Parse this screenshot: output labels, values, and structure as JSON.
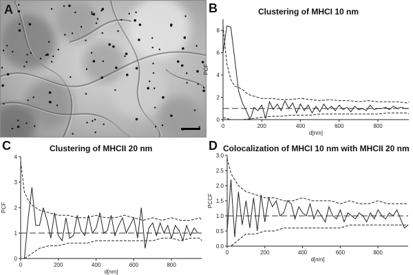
{
  "figure": {
    "panels": [
      {
        "id": "A",
        "label": "A"
      },
      {
        "id": "B",
        "label": "B",
        "title": "Clustering of MHCI 10 nm"
      },
      {
        "id": "C",
        "label": "C",
        "title": "Clustering of MHCII 20 nm"
      },
      {
        "id": "D",
        "label": "D",
        "title": "Colocalization of MHCI 10 nm with MHCII 20 nm"
      }
    ]
  },
  "chart_data": [
    {
      "panel": "B",
      "type": "line",
      "title": "Clustering of MHCI 10 nm",
      "xlabel": "d[nm]",
      "ylabel": "PCF",
      "xlim": [
        0,
        960
      ],
      "ylim": [
        0,
        9
      ],
      "xticks": [
        0,
        200,
        400,
        600,
        800
      ],
      "yticks": [
        0,
        2,
        4,
        6,
        8
      ],
      "reference_line": 1,
      "series": [
        {
          "style": "solid",
          "x": [
            0,
            20,
            40,
            60,
            80,
            100,
            120,
            140,
            160,
            180,
            200,
            220,
            240,
            260,
            280,
            300,
            320,
            340,
            360,
            380,
            400,
            420,
            440,
            460,
            480,
            500,
            520,
            540,
            560,
            580,
            600,
            620,
            640,
            660,
            680,
            700,
            720,
            740,
            760,
            780,
            800,
            820,
            840,
            860,
            880,
            900,
            920,
            940,
            960
          ],
          "y": [
            6.0,
            8.4,
            8.3,
            5.5,
            2.6,
            1.5,
            0.8,
            0.0,
            1.1,
            0.8,
            1.3,
            0.1,
            1.6,
            0.9,
            1.4,
            0.8,
            1.7,
            1.0,
            1.5,
            0.6,
            1.4,
            0.8,
            1.3,
            0.6,
            1.2,
            0.7,
            1.4,
            0.9,
            1.2,
            0.8,
            1.3,
            0.9,
            1.1,
            0.7,
            1.2,
            0.9,
            1.0,
            0.8,
            1.3,
            0.9,
            1.0,
            1.0,
            1.1,
            0.9,
            1.2,
            1.0,
            1.1,
            1.0,
            1.0
          ]
        },
        {
          "style": "dashed",
          "x": [
            0,
            20,
            40,
            60,
            80,
            100,
            120,
            140,
            160,
            180,
            200,
            250,
            300,
            350,
            400,
            450,
            500,
            550,
            600,
            650,
            700,
            750,
            800,
            850,
            900,
            950,
            960
          ],
          "y": [
            8.4,
            5.0,
            3.6,
            3.0,
            2.9,
            2.7,
            2.4,
            2.2,
            2.1,
            2.0,
            1.9,
            1.9,
            1.8,
            1.8,
            1.9,
            1.8,
            1.7,
            1.8,
            1.7,
            1.7,
            1.6,
            1.7,
            1.6,
            1.6,
            1.6,
            1.5,
            1.6
          ]
        },
        {
          "style": "dashed",
          "x": [
            0,
            20,
            40,
            60,
            80,
            100,
            150,
            200,
            250,
            300,
            350,
            400,
            450,
            500,
            550,
            600,
            650,
            700,
            750,
            800,
            850,
            900,
            950,
            960
          ],
          "y": [
            0.2,
            0.1,
            0.0,
            0.0,
            0.0,
            0.0,
            0.1,
            0.2,
            0.3,
            0.3,
            0.4,
            0.4,
            0.4,
            0.5,
            0.5,
            0.5,
            0.5,
            0.5,
            0.5,
            0.5,
            0.6,
            0.6,
            0.6,
            0.5
          ]
        }
      ]
    },
    {
      "panel": "C",
      "type": "line",
      "title": "Clustering of MHCII 20 nm",
      "xlabel": "d[nm]",
      "ylabel": "PCF",
      "xlim": [
        0,
        960
      ],
      "ylim": [
        0,
        4
      ],
      "xticks": [
        0,
        200,
        400,
        600,
        800
      ],
      "yticks": [
        0,
        1,
        2,
        3,
        4
      ],
      "reference_line": 1,
      "series": [
        {
          "style": "solid",
          "x": [
            0,
            20,
            40,
            60,
            80,
            100,
            120,
            140,
            160,
            180,
            200,
            220,
            240,
            260,
            280,
            300,
            320,
            340,
            360,
            380,
            400,
            420,
            440,
            460,
            480,
            500,
            520,
            540,
            560,
            580,
            600,
            620,
            640,
            660,
            680,
            700,
            720,
            740,
            760,
            780,
            800,
            820,
            840,
            860,
            880,
            900,
            920,
            940,
            960
          ],
          "y": [
            0.0,
            0.0,
            1.6,
            2.8,
            1.3,
            1.3,
            2.0,
            1.5,
            0.8,
            1.8,
            0.9,
            0.7,
            1.6,
            0.8,
            0.9,
            1.7,
            1.1,
            0.9,
            1.7,
            1.0,
            1.2,
            1.8,
            1.0,
            1.1,
            1.7,
            0.9,
            1.3,
            1.6,
            1.0,
            1.3,
            1.6,
            0.8,
            2.0,
            0.4,
            1.2,
            1.4,
            0.9,
            1.4,
            1.0,
            1.3,
            0.8,
            1.3,
            1.1,
            0.7,
            1.3,
            0.9,
            1.2,
            1.0,
            1.0
          ]
        },
        {
          "style": "dashed",
          "x": [
            0,
            20,
            40,
            60,
            80,
            100,
            150,
            200,
            250,
            300,
            350,
            400,
            450,
            500,
            550,
            600,
            650,
            700,
            750,
            800,
            850,
            900,
            950,
            960
          ],
          "y": [
            3.8,
            2.6,
            2.3,
            2.1,
            2.0,
            1.9,
            1.8,
            1.7,
            1.7,
            1.6,
            1.6,
            1.7,
            1.6,
            1.6,
            1.7,
            1.6,
            1.5,
            1.6,
            1.5,
            1.6,
            1.5,
            1.5,
            1.6,
            1.5
          ]
        },
        {
          "style": "dashed",
          "x": [
            0,
            20,
            40,
            60,
            80,
            100,
            150,
            200,
            250,
            300,
            350,
            400,
            450,
            500,
            550,
            600,
            650,
            700,
            750,
            800,
            850,
            900,
            950,
            960
          ],
          "y": [
            0.0,
            0.0,
            0.1,
            0.2,
            0.3,
            0.4,
            0.5,
            0.5,
            0.6,
            0.6,
            0.6,
            0.7,
            0.7,
            0.7,
            0.7,
            0.7,
            0.7,
            0.7,
            0.8,
            0.8,
            0.7,
            0.8,
            0.8,
            0.7
          ]
        }
      ]
    },
    {
      "panel": "D",
      "type": "line",
      "title": "Colocalization of MHCI 10 nm with MHCII 20 nm",
      "xlabel": "d[nm]",
      "ylabel": "PCCF",
      "xlim": [
        0,
        960
      ],
      "ylim": [
        0,
        3.0
      ],
      "xticks": [
        0,
        200,
        400,
        600,
        800
      ],
      "yticks": [
        0.0,
        0.5,
        1.0,
        1.5,
        2.0,
        2.5,
        3.0
      ],
      "reference_line": 1.0,
      "series": [
        {
          "style": "solid",
          "x": [
            0,
            20,
            40,
            60,
            80,
            100,
            120,
            140,
            160,
            180,
            200,
            220,
            240,
            260,
            280,
            300,
            320,
            340,
            360,
            380,
            400,
            420,
            440,
            460,
            480,
            500,
            520,
            540,
            560,
            580,
            600,
            620,
            640,
            660,
            680,
            700,
            720,
            740,
            760,
            780,
            800,
            820,
            840,
            860,
            880,
            900,
            920,
            940,
            960
          ],
          "y": [
            0.5,
            2.2,
            0.3,
            1.8,
            0.7,
            1.5,
            0.6,
            1.6,
            0.5,
            1.7,
            0.8,
            1.6,
            1.3,
            1.5,
            1.0,
            1.1,
            1.5,
            1.4,
            0.9,
            1.3,
            1.1,
            1.0,
            1.4,
            0.9,
            1.2,
            1.0,
            0.8,
            1.3,
            1.0,
            0.9,
            1.2,
            0.8,
            1.1,
            1.0,
            0.9,
            1.1,
            1.0,
            0.8,
            1.1,
            0.9,
            1.2,
            1.0,
            0.9,
            1.1,
            1.0,
            1.2,
            0.9,
            0.6,
            0.7
          ]
        },
        {
          "style": "dashed",
          "x": [
            0,
            20,
            40,
            60,
            80,
            100,
            150,
            200,
            250,
            300,
            350,
            400,
            450,
            500,
            550,
            600,
            650,
            700,
            750,
            800,
            850,
            900,
            950,
            960
          ],
          "y": [
            2.9,
            2.4,
            2.2,
            2.0,
            1.9,
            1.8,
            1.7,
            1.6,
            1.6,
            1.5,
            1.5,
            1.6,
            1.5,
            1.5,
            1.5,
            1.4,
            1.5,
            1.4,
            1.4,
            1.5,
            1.4,
            1.4,
            1.4,
            1.4
          ]
        },
        {
          "style": "dashed",
          "x": [
            0,
            20,
            40,
            60,
            80,
            100,
            150,
            200,
            250,
            300,
            350,
            400,
            450,
            500,
            550,
            600,
            650,
            700,
            750,
            800,
            850,
            900,
            950,
            960
          ],
          "y": [
            0.0,
            0.0,
            0.1,
            0.2,
            0.3,
            0.4,
            0.4,
            0.5,
            0.5,
            0.6,
            0.6,
            0.6,
            0.6,
            0.6,
            0.6,
            0.6,
            0.7,
            0.7,
            0.7,
            0.7,
            0.7,
            0.7,
            0.7,
            0.7
          ]
        }
      ]
    }
  ]
}
